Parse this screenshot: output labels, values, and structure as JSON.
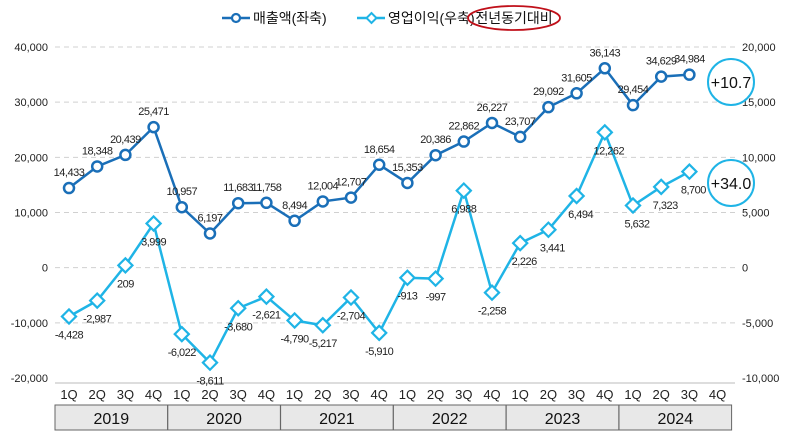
{
  "chart_data": {
    "type": "line",
    "legend": {
      "placement": "top",
      "items": [
        "매출액(좌축)",
        "영업이익(우축)"
      ],
      "badge": "전년동기대비"
    },
    "quarters": [
      "1Q",
      "2Q",
      "3Q",
      "4Q"
    ],
    "years": [
      "2019",
      "2020",
      "2021",
      "2022",
      "2023",
      "2024"
    ],
    "series": [
      {
        "name": "매출액(좌축)",
        "axis": "left",
        "color": "#1a6fb8",
        "values": [
          14433,
          18348,
          20439,
          25471,
          10957,
          6197,
          11683,
          11758,
          8494,
          12004,
          12707,
          18654,
          15353,
          20386,
          22862,
          26227,
          23707,
          29092,
          31605,
          36143,
          29454,
          34629,
          34984
        ],
        "labels": [
          "14,433",
          "18,348",
          "20,439",
          "25,471",
          "10,957",
          "6,197",
          "11,683",
          "11,758",
          "8,494",
          "12,004",
          "12,707",
          "18,654",
          "15,353",
          "20,386",
          "22,862",
          "26,227",
          "23,707",
          "29,092",
          "31,605",
          "36,143",
          "29,454",
          "34,629",
          "34,984"
        ]
      },
      {
        "name": "영업이익(우축)",
        "axis": "right",
        "color": "#1fb4e6",
        "values": [
          -4428,
          -2987,
          209,
          3999,
          -6022,
          -8611,
          -3680,
          -2621,
          -4790,
          -5217,
          -2704,
          -5910,
          -913,
          -997,
          6988,
          -2258,
          2226,
          3441,
          6494,
          12262,
          5632,
          7323,
          8700
        ],
        "labels": [
          "-4,428",
          "-2,987",
          "209",
          "3,999",
          "-6,022",
          "-8,611",
          "-3,680",
          "-2,621",
          "-4,790",
          "-5,217",
          "-2,704",
          "-5,910",
          "-913",
          "-997",
          "6,988",
          "-2,258",
          "2,226",
          "3,441",
          "6,494",
          "12,262",
          "5,632",
          "7,323",
          "8,700"
        ]
      }
    ],
    "left_axis": {
      "min": -20000,
      "max": 40000,
      "ticks": [
        "-20,000",
        "-10,000",
        "0",
        "10,000",
        "20,000",
        "30,000",
        "40,000"
      ]
    },
    "right_axis": {
      "min": -10000,
      "max": 20000,
      "ticks": [
        "-10,000",
        "-5,000",
        "0",
        "5,000",
        "10,000",
        "15,000",
        "20,000"
      ]
    },
    "grid": "horizontal dashed",
    "annotations": [
      {
        "text": "+10.7",
        "series": "매출액(좌축)"
      },
      {
        "text": "+34.0",
        "series": "영업이익(우축)"
      }
    ]
  }
}
